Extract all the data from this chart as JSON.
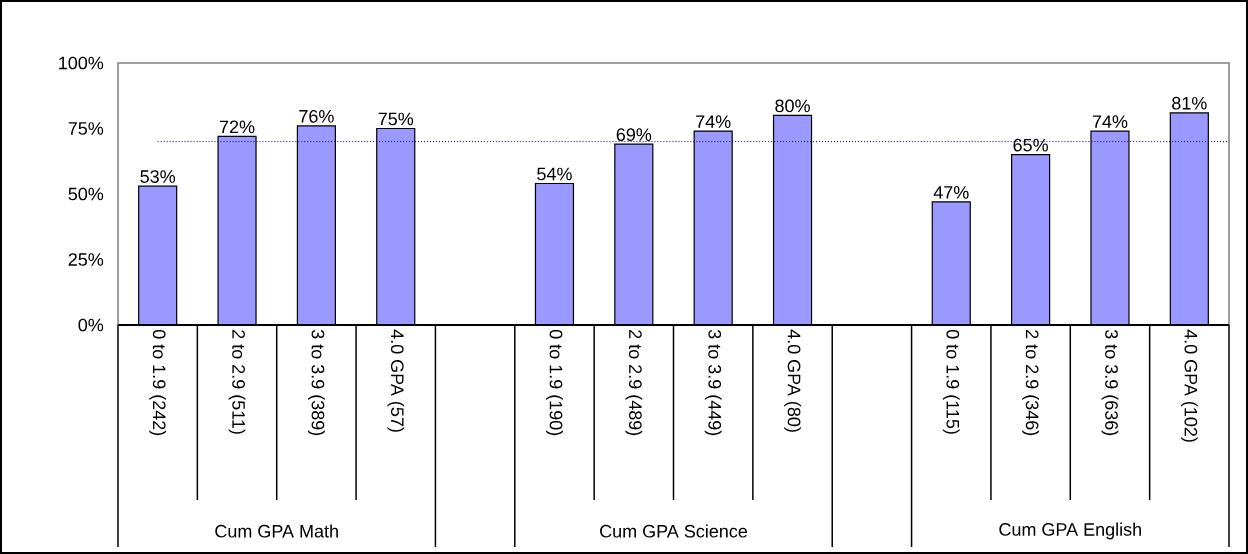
{
  "chart_data": {
    "type": "bar",
    "categories": [
      "0 to 1.9 (242)",
      "2 to 2.9 (511)",
      "3 to 3.9 (389)",
      "4.0 GPA (57)",
      null,
      "0 to 1.9 (190)",
      "2 to 2.9 (489)",
      "3 to 3.9 (449)",
      "4.0 GPA (80)",
      null,
      "0 to 1.9 (115)",
      "2 to 2.9 (346)",
      "3 to 3.9 (636)",
      "4.0 GPA (102)"
    ],
    "values": [
      53,
      72,
      76,
      75,
      null,
      54,
      69,
      74,
      80,
      null,
      47,
      65,
      74,
      81
    ],
    "value_labels": [
      "53%",
      "72%",
      "76%",
      "75%",
      null,
      "54%",
      "69%",
      "74%",
      "80%",
      null,
      "47%",
      "65%",
      "74%",
      "81%"
    ],
    "color": "#9999ff",
    "ylim": [
      0,
      100
    ],
    "yticks": [
      {
        "value": 0,
        "label": "0%"
      },
      {
        "value": 25,
        "label": "25%"
      },
      {
        "value": 50,
        "label": "50%"
      },
      {
        "value": 75,
        "label": "75%"
      },
      {
        "value": 100,
        "label": "100%"
      }
    ],
    "ref_lines": [
      {
        "axis": "y",
        "value": 70,
        "color": "#000080",
        "line_style": "dotted"
      }
    ],
    "annotations": [
      "Cum GPA Math",
      "Cum GPA Science",
      "Cum GPA English"
    ]
  }
}
